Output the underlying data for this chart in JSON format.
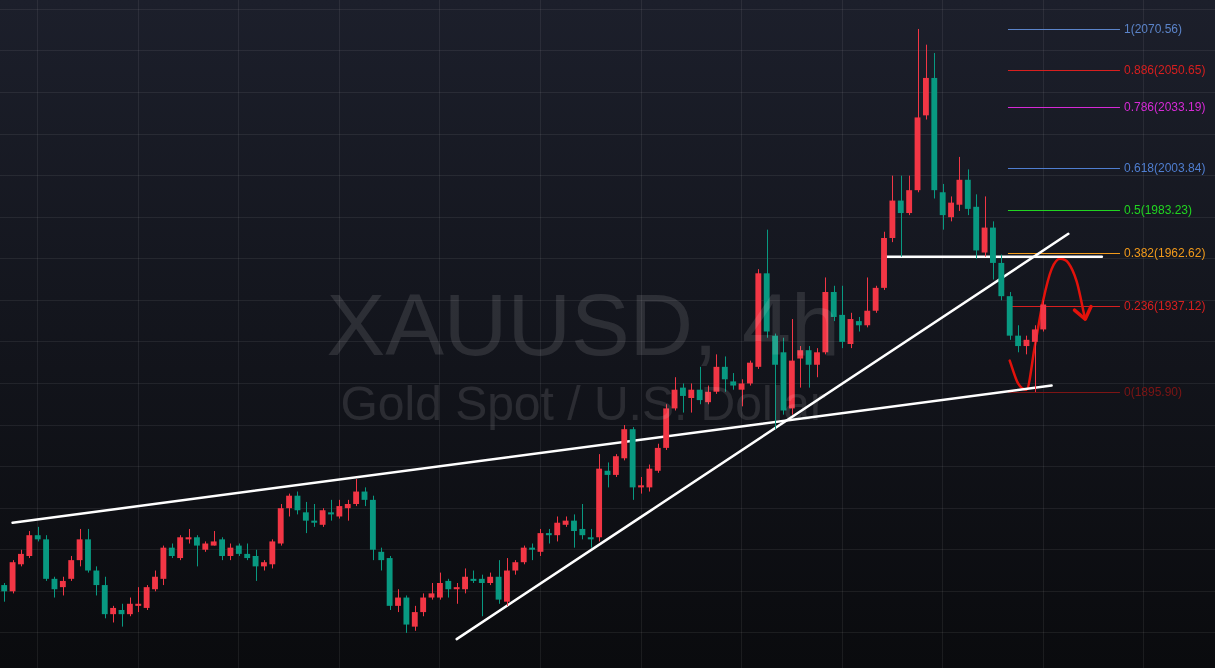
{
  "chart_data": {
    "type": "candlestick",
    "title": "XAUUSD, 4h",
    "subtitle": "Gold Spot / U.S. Dollar",
    "categories": [
      null,
      null,
      null,
      null,
      null,
      null,
      null,
      null,
      null,
      null,
      null,
      null,
      null,
      null,
      null,
      null,
      null,
      null,
      null,
      null,
      null,
      null,
      null,
      null,
      null,
      null,
      null,
      null,
      null,
      null,
      null,
      null,
      null,
      null,
      null,
      null,
      null,
      null,
      null,
      null,
      null,
      null,
      null,
      null,
      null,
      null,
      null,
      null,
      null,
      null,
      null,
      null,
      null,
      null,
      null,
      null,
      null,
      null,
      null,
      null,
      null,
      null,
      null,
      null,
      null,
      null,
      null,
      null,
      null,
      null,
      null,
      null,
      null,
      null,
      null,
      null,
      null,
      null,
      null,
      null,
      null,
      null,
      null,
      null,
      null,
      null,
      null,
      null,
      null,
      null,
      null,
      null,
      null,
      null,
      null,
      null,
      null,
      null,
      null,
      null,
      null,
      null,
      null,
      null,
      null,
      null,
      null,
      null,
      null,
      null,
      null,
      null,
      null,
      null,
      null,
      null,
      null,
      null,
      null,
      null,
      null,
      null,
      null,
      null,
      null,
      null,
      null,
      null,
      null,
      null,
      null,
      null,
      null,
      null,
      null,
      null,
      null,
      null,
      null,
      null,
      null,
      null,
      null,
      null,
      null
    ],
    "ohlc": [
      [
        1803,
        1804,
        1795,
        1800
      ],
      [
        1800,
        1815,
        1799,
        1814
      ],
      [
        1813,
        1820,
        1812,
        1818
      ],
      [
        1817,
        1829,
        1816,
        1827
      ],
      [
        1827,
        1831,
        1824,
        1825
      ],
      [
        1825,
        1827,
        1805,
        1806
      ],
      [
        1806,
        1807,
        1797,
        1801
      ],
      [
        1802,
        1807,
        1798,
        1805
      ],
      [
        1806,
        1817,
        1805,
        1815
      ],
      [
        1815,
        1830,
        1812,
        1825
      ],
      [
        1825,
        1830,
        1809,
        1810
      ],
      [
        1810,
        1812,
        1798,
        1803
      ],
      [
        1803,
        1807,
        1787,
        1789
      ],
      [
        1789,
        1793,
        1785,
        1792
      ],
      [
        1791,
        1794,
        1783,
        1789
      ],
      [
        1789,
        1797,
        1788,
        1794
      ],
      [
        1793,
        1802,
        1790,
        1794
      ],
      [
        1792,
        1803,
        1791,
        1802
      ],
      [
        1801,
        1810,
        1800,
        1807
      ],
      [
        1806,
        1822,
        1803,
        1821
      ],
      [
        1821,
        1823,
        1816,
        1817
      ],
      [
        1816,
        1827,
        1815,
        1826
      ],
      [
        1825,
        1830,
        1823,
        1826
      ],
      [
        1826,
        1827,
        1812,
        1822
      ],
      [
        1820,
        1824,
        1819,
        1823
      ],
      [
        1822,
        1829,
        1822,
        1824
      ],
      [
        1825,
        1826,
        1815,
        1817
      ],
      [
        1817,
        1823,
        1815,
        1821
      ],
      [
        1822,
        1823,
        1817,
        1818
      ],
      [
        1818,
        1823,
        1815,
        1816
      ],
      [
        1817,
        1820,
        1805,
        1812
      ],
      [
        1812,
        1815,
        1810,
        1814
      ],
      [
        1813,
        1825,
        1811,
        1824
      ],
      [
        1823,
        1842,
        1822,
        1840
      ],
      [
        1840,
        1847,
        1836,
        1846
      ],
      [
        1846,
        1848,
        1837,
        1839
      ],
      [
        1838,
        1843,
        1828,
        1834
      ],
      [
        1834,
        1842,
        1831,
        1833
      ],
      [
        1832,
        1840,
        1831,
        1839
      ],
      [
        1838,
        1844,
        1834,
        1837
      ],
      [
        1836,
        1844,
        1835,
        1841
      ],
      [
        1840,
        1844,
        1834,
        1842
      ],
      [
        1842,
        1854,
        1841,
        1848
      ],
      [
        1848,
        1850,
        1841,
        1844
      ],
      [
        1844,
        1846,
        1815,
        1820
      ],
      [
        1819,
        1821,
        1810,
        1815
      ],
      [
        1816,
        1817,
        1791,
        1793
      ],
      [
        1793,
        1801,
        1790,
        1797
      ],
      [
        1797,
        1798,
        1780,
        1784
      ],
      [
        1783,
        1793,
        1781,
        1790
      ],
      [
        1790,
        1799,
        1788,
        1797
      ],
      [
        1797,
        1804,
        1796,
        1799
      ],
      [
        1797,
        1809,
        1796,
        1804
      ],
      [
        1805,
        1806,
        1797,
        1801
      ],
      [
        1801,
        1804,
        1794,
        1802
      ],
      [
        1801,
        1811,
        1799,
        1807
      ],
      [
        1806,
        1810,
        1804,
        1805
      ],
      [
        1806,
        1808,
        1788,
        1804
      ],
      [
        1804,
        1809,
        1803,
        1807
      ],
      [
        1807,
        1815,
        1794,
        1796
      ],
      [
        1795,
        1816,
        1793,
        1810
      ],
      [
        1810,
        1815,
        1808,
        1814
      ],
      [
        1814,
        1822,
        1813,
        1821
      ],
      [
        1821,
        1823,
        1815,
        1820
      ],
      [
        1819,
        1830,
        1817,
        1828
      ],
      [
        1828,
        1830,
        1823,
        1827
      ],
      [
        1827,
        1836,
        1824,
        1833
      ],
      [
        1832,
        1836,
        1831,
        1834
      ],
      [
        1834,
        1837,
        1821,
        1829
      ],
      [
        1830,
        1842,
        1825,
        1827
      ],
      [
        1826,
        1830,
        1821,
        1825
      ],
      [
        1826,
        1866,
        1824,
        1859
      ],
      [
        1858,
        1862,
        1850,
        1856
      ],
      [
        1856,
        1866,
        1855,
        1865
      ],
      [
        1864,
        1880,
        1863,
        1878
      ],
      [
        1878,
        1879,
        1844,
        1850
      ],
      [
        1850,
        1855,
        1847,
        1851
      ],
      [
        1850,
        1861,
        1848,
        1859
      ],
      [
        1858,
        1871,
        1857,
        1869
      ],
      [
        1869,
        1890,
        1868,
        1888
      ],
      [
        1888,
        1903,
        1887,
        1897
      ],
      [
        1898,
        1900,
        1886,
        1894
      ],
      [
        1893,
        1900,
        1886,
        1897
      ],
      [
        1897,
        1908,
        1890,
        1892
      ],
      [
        1891,
        1899,
        1890,
        1896
      ],
      [
        1896,
        1914,
        1895,
        1908
      ],
      [
        1908,
        1913,
        1896,
        1902
      ],
      [
        1901,
        1905,
        1897,
        1899
      ],
      [
        1897,
        1902,
        1889,
        1900
      ],
      [
        1900,
        1911,
        1899,
        1910
      ],
      [
        1908,
        1955,
        1907,
        1953
      ],
      [
        1953,
        1974,
        1922,
        1925
      ],
      [
        1923,
        1924,
        1878,
        1909
      ],
      [
        1915,
        1922,
        1885,
        1887
      ],
      [
        1888,
        1931,
        1885,
        1911
      ],
      [
        1912,
        1918,
        1898,
        1916
      ],
      [
        1916,
        1918,
        1898,
        1909
      ],
      [
        1909,
        1917,
        1903,
        1915
      ],
      [
        1915,
        1951,
        1914,
        1944
      ],
      [
        1944,
        1947,
        1930,
        1932
      ],
      [
        1933,
        1947,
        1917,
        1920
      ],
      [
        1919,
        1934,
        1917,
        1931
      ],
      [
        1930,
        1932,
        1925,
        1928
      ],
      [
        1928,
        1951,
        1927,
        1935
      ],
      [
        1935,
        1947,
        1934,
        1946
      ],
      [
        1946,
        1973,
        1945,
        1970
      ],
      [
        1970,
        2000,
        1968,
        1988
      ],
      [
        1988,
        2000,
        1961,
        1982
      ],
      [
        1982,
        2000,
        1981,
        1993
      ],
      [
        1993,
        2070.56,
        1992,
        2028
      ],
      [
        2029,
        2063,
        2027,
        2047
      ],
      [
        2047,
        2059,
        1989,
        1993
      ],
      [
        1992,
        1996,
        1974,
        1981
      ],
      [
        1980,
        1990,
        1978,
        1987
      ],
      [
        1986,
        2009,
        1983,
        1998
      ],
      [
        1998,
        2003,
        1981,
        1984
      ],
      [
        1985,
        1991,
        1960,
        1964
      ],
      [
        1963,
        1990,
        1961,
        1975
      ],
      [
        1975,
        1978,
        1950,
        1958
      ],
      [
        1958,
        1962,
        1940,
        1942
      ],
      [
        1942,
        1944,
        1921,
        1923
      ],
      [
        1923,
        1928,
        1915,
        1918
      ],
      [
        1918,
        1923,
        1914,
        1921
      ],
      [
        1920,
        1928,
        1895.9,
        1926
      ],
      [
        1926,
        1940,
        1925,
        1938
      ],
      null,
      null,
      null,
      null,
      null,
      null,
      null,
      null,
      null,
      null,
      null,
      null,
      null,
      null,
      null,
      null,
      null,
      null,
      null,
      null
    ],
    "colors": [
      "#089981",
      "#f23645",
      "#f23645",
      "#f23645",
      "#089981",
      "#089981",
      "#089981",
      "#f23645",
      "#f23645",
      "#f23645",
      "#089981",
      "#089981",
      "#089981",
      "#f23645",
      "#089981",
      "#f23645",
      "#f23645",
      "#f23645",
      "#f23645",
      "#f23645",
      "#089981",
      "#f23645",
      "#f23645",
      "#089981",
      "#f23645",
      "#f23645",
      "#089981",
      "#f23645",
      "#089981",
      "#089981",
      "#089981",
      "#f23645",
      "#f23645",
      "#f23645",
      "#f23645",
      "#089981",
      "#089981",
      "#089981",
      "#f23645",
      "#089981",
      "#f23645",
      "#f23645",
      "#f23645",
      "#089981",
      "#089981",
      "#089981",
      "#089981",
      "#f23645",
      "#089981",
      "#f23645",
      "#f23645",
      "#f23645",
      "#f23645",
      "#089981",
      "#f23645",
      "#f23645",
      "#089981",
      "#089981",
      "#f23645",
      "#089981",
      "#f23645",
      "#f23645",
      "#f23645",
      "#089981",
      "#f23645",
      "#089981",
      "#f23645",
      "#f23645",
      "#089981",
      "#089981",
      "#089981",
      "#f23645",
      "#089981",
      "#f23645",
      "#f23645",
      "#089981",
      "#f23645",
      "#f23645",
      "#f23645",
      "#f23645",
      "#f23645",
      "#089981",
      "#f23645",
      "#089981",
      "#f23645",
      "#f23645",
      "#089981",
      "#089981",
      "#f23645",
      "#f23645",
      "#f23645",
      "#089981",
      "#089981",
      "#089981",
      "#f23645",
      "#f23645",
      "#089981",
      "#f23645",
      "#f23645",
      "#089981",
      "#089981",
      "#f23645",
      "#089981",
      "#f23645",
      "#f23645",
      "#f23645",
      "#f23645",
      "#089981",
      "#f23645",
      "#f23645",
      "#f23645",
      "#089981",
      "#089981",
      "#f23645",
      "#f23645",
      "#089981",
      "#089981",
      "#f23645",
      "#089981",
      "#089981",
      "#089981",
      "#089981",
      "#f23645",
      "#f23645",
      "#f23645",
      null,
      null,
      null,
      null,
      null,
      null,
      null,
      null,
      null,
      null,
      null,
      null,
      null,
      null,
      null,
      null,
      null,
      null,
      null,
      null
    ],
    "series": [
      {
        "type": "line",
        "color": "#ffffff",
        "values": [
          null,
          1833,
          null,
          null,
          null,
          null,
          null,
          null,
          null,
          null,
          null,
          null,
          null,
          null,
          null,
          null,
          null,
          null,
          null,
          null,
          null,
          null,
          null,
          null,
          null,
          null,
          null,
          null,
          null,
          null,
          null,
          null,
          null,
          null,
          null,
          null,
          null,
          null,
          null,
          null,
          null,
          null,
          null,
          null,
          null,
          null,
          null,
          null,
          null,
          null,
          null,
          null,
          null,
          null,
          null,
          null,
          null,
          null,
          null,
          null,
          null,
          null,
          null,
          null,
          null,
          null,
          null,
          null,
          null,
          null,
          null,
          null,
          null,
          null,
          null,
          null,
          null,
          null,
          null,
          null,
          null,
          null,
          null,
          null,
          null,
          null,
          null,
          null,
          null,
          null,
          null,
          null,
          null,
          null,
          null,
          null,
          null,
          null,
          null,
          null,
          null,
          null,
          null,
          null,
          null,
          null,
          null,
          null,
          null,
          null,
          null,
          null,
          null,
          null,
          null,
          null,
          null,
          null,
          null,
          null,
          null,
          null,
          null,
          null,
          null,
          1899,
          null,
          null,
          null,
          null,
          null,
          null,
          null,
          null,
          null,
          null,
          null,
          null,
          null,
          null,
          null,
          null,
          null,
          null,
          null
        ]
      },
      {
        "type": "line",
        "color": "#ffffff",
        "values": [
          null,
          null,
          null,
          null,
          null,
          null,
          null,
          null,
          null,
          null,
          null,
          null,
          null,
          null,
          null,
          null,
          null,
          null,
          null,
          null,
          null,
          null,
          null,
          null,
          null,
          null,
          null,
          null,
          null,
          null,
          null,
          null,
          null,
          null,
          null,
          null,
          null,
          null,
          null,
          null,
          null,
          null,
          null,
          null,
          null,
          null,
          null,
          null,
          null,
          null,
          null,
          null,
          null,
          null,
          1777,
          null,
          null,
          null,
          null,
          null,
          null,
          null,
          null,
          null,
          null,
          null,
          null,
          null,
          null,
          null,
          null,
          null,
          null,
          null,
          null,
          null,
          null,
          null,
          null,
          null,
          null,
          null,
          null,
          null,
          null,
          null,
          null,
          null,
          null,
          null,
          null,
          null,
          null,
          null,
          null,
          null,
          null,
          null,
          null,
          null,
          null,
          null,
          null,
          null,
          null,
          null,
          null,
          null,
          null,
          null,
          null,
          null,
          null,
          null,
          null,
          null,
          null,
          null,
          null,
          null,
          null,
          null,
          null,
          null,
          null,
          null,
          null,
          1972,
          null,
          null,
          null,
          null,
          null,
          null,
          null,
          null,
          null,
          null,
          null,
          null,
          null,
          null,
          null,
          null,
          null
        ]
      },
      {
        "type": "line",
        "color": "#ffffff",
        "values": [
          null,
          null,
          null,
          null,
          null,
          null,
          null,
          null,
          null,
          null,
          null,
          null,
          null,
          null,
          null,
          null,
          null,
          null,
          null,
          null,
          null,
          null,
          null,
          null,
          null,
          null,
          null,
          null,
          null,
          null,
          null,
          null,
          null,
          null,
          null,
          null,
          null,
          null,
          null,
          null,
          null,
          null,
          null,
          null,
          null,
          null,
          null,
          null,
          null,
          null,
          null,
          null,
          null,
          null,
          null,
          null,
          null,
          null,
          null,
          null,
          null,
          null,
          null,
          null,
          null,
          null,
          null,
          null,
          null,
          null,
          null,
          null,
          null,
          null,
          null,
          null,
          null,
          null,
          null,
          null,
          null,
          null,
          null,
          null,
          null,
          null,
          null,
          null,
          null,
          null,
          null,
          null,
          null,
          null,
          null,
          null,
          null,
          null,
          null,
          null,
          null,
          null,
          null,
          null,
          null,
          1961,
          null,
          null,
          null,
          null,
          null,
          null,
          null,
          null,
          null,
          null,
          null,
          null,
          null,
          null,
          null,
          null,
          null,
          null,
          null,
          null,
          null,
          null,
          null,
          null,
          null,
          1961,
          null,
          null,
          null,
          null,
          null,
          null,
          null,
          null,
          null,
          null,
          null,
          null,
          null
        ]
      },
      {
        "type": "line",
        "color": "#e3120b",
        "values": [
          null,
          null,
          null,
          null,
          null,
          null,
          null,
          null,
          null,
          null,
          null,
          null,
          null,
          null,
          null,
          null,
          null,
          null,
          null,
          null,
          null,
          null,
          null,
          null,
          null,
          null,
          null,
          null,
          null,
          null,
          null,
          null,
          null,
          null,
          null,
          null,
          null,
          null,
          null,
          null,
          null,
          null,
          null,
          null,
          null,
          null,
          null,
          null,
          null,
          null,
          null,
          null,
          null,
          null,
          null,
          null,
          null,
          null,
          null,
          null,
          null,
          null,
          null,
          null,
          null,
          null,
          null,
          null,
          null,
          null,
          null,
          null,
          null,
          null,
          null,
          null,
          null,
          null,
          null,
          null,
          null,
          null,
          null,
          null,
          null,
          null,
          null,
          null,
          null,
          null,
          null,
          null,
          null,
          null,
          null,
          null,
          null,
          null,
          null,
          null,
          null,
          null,
          null,
          null,
          null,
          null,
          null,
          null,
          null,
          null,
          null,
          null,
          null,
          null,
          null,
          null,
          null,
          null,
          null,
          null,
          1911,
          1900,
          1897,
          1918,
          1940,
          1955,
          1960,
          1958,
          1949,
          1931,
          null,
          null,
          null,
          null,
          null,
          null,
          null,
          null,
          null,
          null,
          null,
          null,
          null,
          null,
          null
        ]
      }
    ],
    "ylim": [
      1763.1,
      2084.5
    ],
    "yticks": [
      {
        "value": 1780,
        "label": null
      },
      {
        "value": 1800,
        "label": null
      },
      {
        "value": 1820,
        "label": null
      },
      {
        "value": 1840,
        "label": null
      },
      {
        "value": 1860,
        "label": null
      },
      {
        "value": 1880,
        "label": null
      },
      {
        "value": 1900,
        "label": null
      },
      {
        "value": 1920,
        "label": null
      },
      {
        "value": 1940,
        "label": null
      },
      {
        "value": 1960,
        "label": null
      },
      {
        "value": 1980,
        "label": null
      },
      {
        "value": 2000,
        "label": null
      },
      {
        "value": 2020,
        "label": null
      },
      {
        "value": 2040,
        "label": null
      },
      {
        "value": 2060,
        "label": null
      },
      {
        "value": 2080,
        "label": null
      }
    ],
    "ref_lines": [
      {
        "axis": "y",
        "value": 2070.56,
        "label": "1(2070.56)",
        "color": "#5b84c9"
      },
      {
        "axis": "y",
        "value": 2050.65,
        "label": "0.886(2050.65)",
        "color": "#d81f1f"
      },
      {
        "axis": "y",
        "value": 2033.19,
        "label": "0.786(2033.19)",
        "color": "#d62ad6"
      },
      {
        "axis": "y",
        "value": 2003.84,
        "label": "0.618(2003.84)",
        "color": "#4f7ed0"
      },
      {
        "axis": "y",
        "value": 1983.23,
        "label": "0.5(1983.23)",
        "color": "#21d421"
      },
      {
        "axis": "y",
        "value": 1962.62,
        "label": "0.382(1962.62)",
        "color": "#f29a1b"
      },
      {
        "axis": "y",
        "value": 1937.12,
        "label": "0.236(1937.12)",
        "color": "#d81f1f"
      },
      {
        "axis": "y",
        "value": 1895.9,
        "label": "0(1895.90)",
        "color": "#7d1515"
      }
    ],
    "grid": true,
    "tick_labels": false
  }
}
